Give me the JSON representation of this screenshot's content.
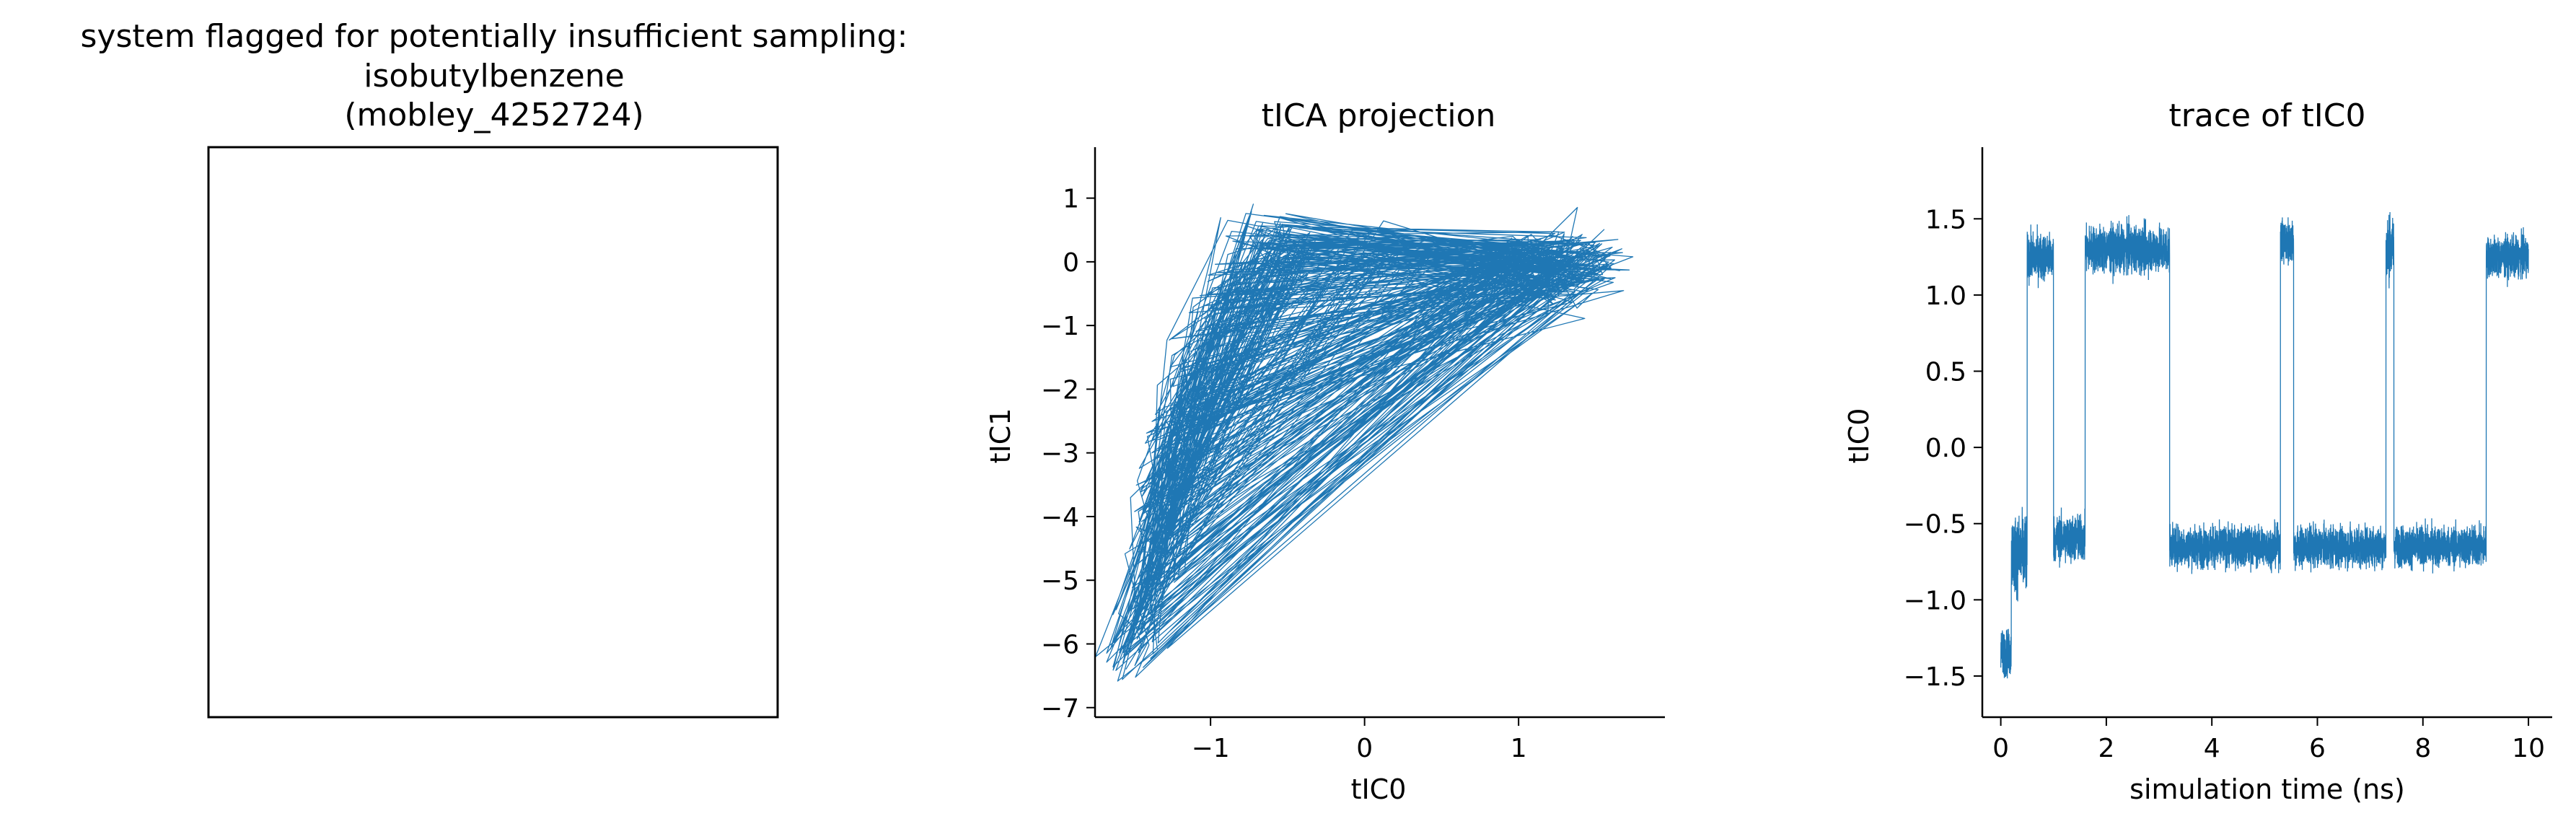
{
  "colors": {
    "series": "#1f77b4",
    "axes": "#000000",
    "background": "#ffffff"
  },
  "chart_data": [
    {
      "type": "image",
      "title_lines": [
        "system flagged for potentially insufficient sampling:",
        "isobutylbenzene",
        "(mobley_4252724)"
      ],
      "content": "empty frame (no ticks)"
    },
    {
      "type": "line",
      "title": "tICA projection",
      "xlabel": "tIC0",
      "ylabel": "tIC1",
      "xlim": [
        -1.75,
        1.95
      ],
      "ylim": [
        -7.15,
        1.8
      ],
      "xticks": [
        -1,
        0,
        1
      ],
      "yticks": [
        -7,
        -6,
        -5,
        -4,
        -3,
        -2,
        -1,
        0,
        1
      ],
      "grid": false,
      "legend": "none",
      "series": [
        {
          "style": "thin line, dense trajectory",
          "x": [
            -1.55,
            -1.45,
            -1.5,
            -1.42,
            -1.35,
            -1.4,
            -1.32,
            -1.38,
            -1.3,
            -1.28,
            -1.22,
            -1.27,
            -1.2,
            -1.15,
            -1.18,
            -1.1,
            -1.0,
            -0.9,
            -0.8,
            -0.7,
            -0.55,
            -0.45,
            -0.6,
            -0.4,
            -0.5,
            0.0,
            0.5,
            1.0,
            1.2,
            1.4,
            1.5,
            1.3,
            1.1,
            1.25,
            1.45,
            1.6,
            1.2,
            0.2,
            -0.5,
            -0.7,
            -0.45,
            1.0,
            1.35,
            1.15
          ],
          "y": [
            -6.4,
            -6.0,
            -5.6,
            -5.2,
            -4.9,
            -4.5,
            -4.2,
            -3.8,
            -3.5,
            -3.0,
            -2.6,
            -2.9,
            -2.4,
            -2.0,
            -1.6,
            -1.2,
            -0.8,
            -0.4,
            0.2,
            0.5,
            0.3,
            0.0,
            -0.2,
            0.1,
            0.4,
            0.3,
            0.2,
            0.1,
            0.0,
            -0.3,
            0.2,
            -0.4,
            0.1,
            -0.2,
            0.3,
            -0.1,
            0.0,
            0.2,
            0.1,
            -0.1,
            0.3,
            0.0,
            -0.2,
            0.1
          ]
        }
      ]
    },
    {
      "type": "line",
      "title": "trace of tIC0",
      "xlabel": "simulation time (ns)",
      "ylabel": "tIC0",
      "xlim": [
        -0.35,
        10.45
      ],
      "ylim": [
        -1.77,
        1.97
      ],
      "xticks": [
        0,
        2,
        4,
        6,
        8,
        10
      ],
      "yticks": [
        -1.5,
        -1.0,
        -0.5,
        0.0,
        0.5,
        1.0,
        1.5
      ],
      "grid": false,
      "legend": "none",
      "segments": [
        {
          "x_start": 0.0,
          "x_end": 0.2,
          "level": -1.35,
          "noise": 0.15
        },
        {
          "x_start": 0.2,
          "x_end": 0.5,
          "level": -0.7,
          "noise": 0.25
        },
        {
          "x_start": 0.5,
          "x_end": 1.0,
          "level": 1.25,
          "noise": 0.15
        },
        {
          "x_start": 1.0,
          "x_end": 1.6,
          "level": -0.6,
          "noise": 0.15
        },
        {
          "x_start": 1.6,
          "x_end": 3.2,
          "level": 1.3,
          "noise": 0.15
        },
        {
          "x_start": 3.2,
          "x_end": 5.3,
          "level": -0.65,
          "noise": 0.13
        },
        {
          "x_start": 5.3,
          "x_end": 5.55,
          "level": 1.35,
          "noise": 0.15
        },
        {
          "x_start": 5.55,
          "x_end": 7.3,
          "level": -0.65,
          "noise": 0.13
        },
        {
          "x_start": 7.3,
          "x_end": 7.45,
          "level": 1.3,
          "noise": 0.2
        },
        {
          "x_start": 7.45,
          "x_end": 9.2,
          "level": -0.65,
          "noise": 0.13
        },
        {
          "x_start": 9.2,
          "x_end": 10.0,
          "level": 1.25,
          "noise": 0.13
        }
      ]
    }
  ]
}
